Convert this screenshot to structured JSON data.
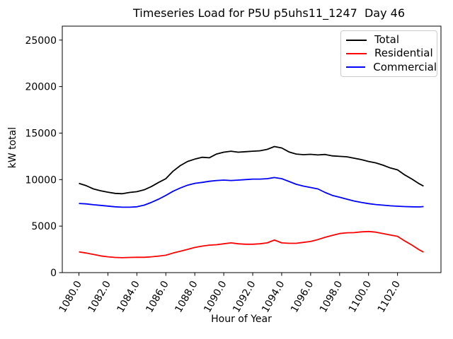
{
  "figure": {
    "background": "#ffffff",
    "text_color": "#000000",
    "frame_color": "#000000",
    "legend_border_color": "#cccccc"
  },
  "chart_data": {
    "type": "line",
    "title": "Timeseries Load for P5U p5uhs11_1247  Day 46",
    "xlabel": "Hour of Year",
    "ylabel": "kW total",
    "grid": false,
    "legend_position": "upper right",
    "xlim": [
      1078.85,
      1105.0
    ],
    "ylim": [
      0,
      26500
    ],
    "xticks": [
      1080,
      1082,
      1084,
      1086,
      1088,
      1090,
      1092,
      1094,
      1096,
      1098,
      1100,
      1102
    ],
    "xtick_labels": [
      "1080.0",
      "1082.0",
      "1084.0",
      "1086.0",
      "1088.0",
      "1090.0",
      "1092.0",
      "1094.0",
      "1096.0",
      "1098.0",
      "1100.0",
      "1102.0"
    ],
    "yticks": [
      0,
      5000,
      10000,
      15000,
      20000,
      25000
    ],
    "ytick_labels": [
      "0",
      "5000",
      "10000",
      "15000",
      "20000",
      "25000"
    ],
    "x": [
      1080.0,
      1080.5,
      1081.0,
      1081.5,
      1082.0,
      1082.5,
      1083.0,
      1083.5,
      1084.0,
      1084.5,
      1085.0,
      1085.5,
      1086.0,
      1086.5,
      1087.0,
      1087.5,
      1088.0,
      1088.5,
      1089.0,
      1089.5,
      1090.0,
      1090.5,
      1091.0,
      1091.5,
      1092.0,
      1092.5,
      1093.0,
      1093.5,
      1094.0,
      1094.5,
      1095.0,
      1095.5,
      1096.0,
      1096.5,
      1097.0,
      1097.5,
      1098.0,
      1098.5,
      1099.0,
      1099.5,
      1100.0,
      1100.5,
      1101.0,
      1101.5,
      1102.0,
      1102.5,
      1103.0,
      1103.5,
      1103.8
    ],
    "series": [
      {
        "name": "Total",
        "color": "#000000",
        "values": [
          9600,
          9350,
          9000,
          8800,
          8650,
          8520,
          8480,
          8620,
          8700,
          8900,
          9250,
          9700,
          10100,
          10900,
          11500,
          11950,
          12200,
          12400,
          12350,
          12750,
          12950,
          13050,
          12950,
          13000,
          13050,
          13100,
          13250,
          13550,
          13400,
          12980,
          12750,
          12680,
          12720,
          12650,
          12700,
          12550,
          12500,
          12450,
          12300,
          12150,
          11950,
          11800,
          11550,
          11250,
          11050,
          10500,
          10050,
          9550,
          9300
        ]
      },
      {
        "name": "Residential",
        "color": "#ff0000",
        "values": [
          2230,
          2100,
          1950,
          1800,
          1700,
          1630,
          1600,
          1630,
          1650,
          1650,
          1700,
          1780,
          1870,
          2100,
          2300,
          2500,
          2700,
          2850,
          2950,
          3000,
          3100,
          3200,
          3100,
          3050,
          3050,
          3100,
          3200,
          3500,
          3200,
          3150,
          3150,
          3250,
          3350,
          3550,
          3800,
          4000,
          4200,
          4280,
          4300,
          4380,
          4420,
          4350,
          4200,
          4050,
          3900,
          3400,
          2950,
          2450,
          2200
        ]
      },
      {
        "name": "Commercial",
        "color": "#0000ff",
        "values": [
          7430,
          7390,
          7300,
          7230,
          7150,
          7080,
          7030,
          7030,
          7080,
          7250,
          7550,
          7900,
          8300,
          8750,
          9100,
          9400,
          9600,
          9700,
          9820,
          9900,
          9950,
          9900,
          9950,
          10000,
          10050,
          10050,
          10100,
          10220,
          10100,
          9800,
          9500,
          9300,
          9150,
          9000,
          8620,
          8300,
          8100,
          7900,
          7700,
          7550,
          7420,
          7320,
          7250,
          7180,
          7140,
          7100,
          7080,
          7060,
          7100
        ]
      }
    ]
  }
}
